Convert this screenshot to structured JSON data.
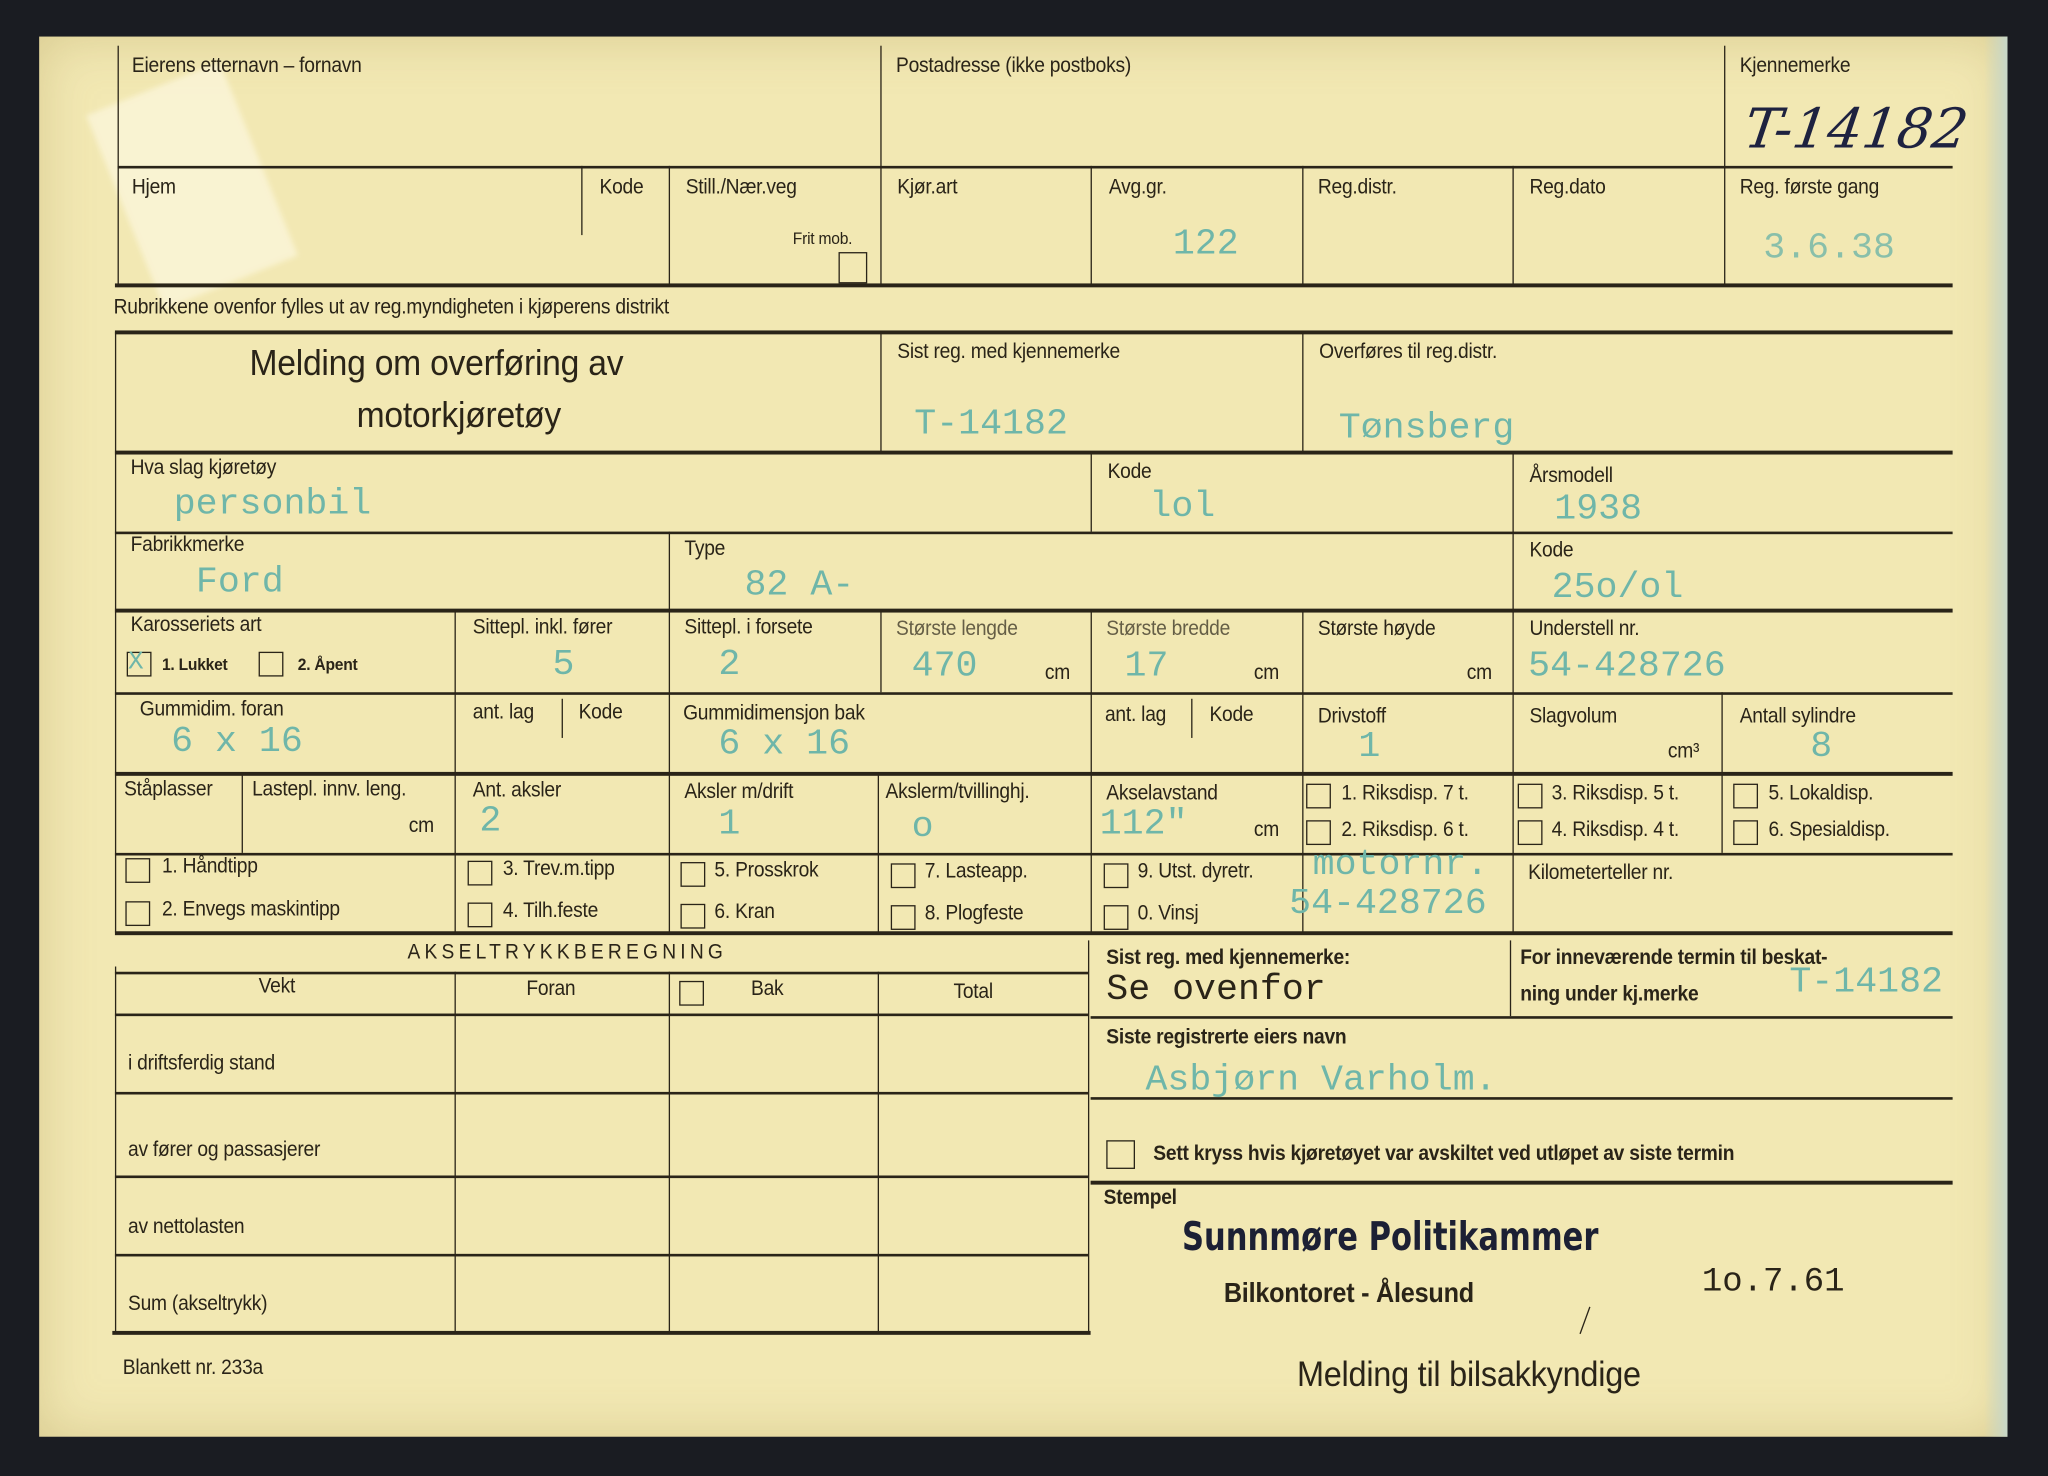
{
  "header": {
    "owner_name_label": "Eierens etternavn – fornavn",
    "postal_address_label": "Postadresse (ikke postboks)",
    "reg_mark_label": "Kjennemerke",
    "reg_mark_handwritten": "T-14182",
    "home_label": "Hjem",
    "code_label": "Kode",
    "road_label": "Still./Nær.veg",
    "frit_mob_label": "Frit mob.",
    "drive_type_label": "Kjør.art",
    "fee_group_label": "Avg.gr.",
    "fee_group_value": "122",
    "reg_district_label": "Reg.distr.",
    "reg_date_label": "Reg.dato",
    "first_reg_label": "Reg. første gang",
    "first_reg_value": "3.6.38",
    "note": "Rubrikkene ovenfor fylles ut av reg.myndigheten i kjøperens distrikt"
  },
  "title": {
    "line1": "Melding om overføring av",
    "line2": "motorkjøretøy"
  },
  "transfer": {
    "last_reg_label": "Sist reg. med kjennemerke",
    "last_reg_value": "T-14182",
    "to_district_label": "Overføres til reg.distr.",
    "to_district_value": "Tønsberg"
  },
  "vehicle": {
    "kind_label": "Hva slag kjøretøy",
    "kind_value": "personbil",
    "kind_code_label": "Kode",
    "kind_code_value": "lol",
    "model_year_label": "Årsmodell",
    "model_year_value": "1938",
    "make_label": "Fabrikkmerke",
    "make_value": "Ford",
    "type_label": "Type",
    "type_value": "82 A-",
    "type_code_label": "Kode",
    "type_code_value": "25o/ol",
    "body_label": "Karosseriets art",
    "body_opt1": "1. Lukket",
    "body_opt1_mark": "X",
    "body_opt2": "2. Åpent",
    "seats_label": "Sittepl. inkl. fører",
    "seats_value": "5",
    "front_seats_label": "Sittepl. i forsete",
    "front_seats_value": "2",
    "length_label": "Største lengde",
    "length_value": "470",
    "length_unit": "cm",
    "width_label": "Største bredde",
    "width_value": "17",
    "width_unit": "cm",
    "height_label": "Største høyde",
    "height_unit": "cm",
    "chassis_label": "Understell nr.",
    "chassis_value": "54-428726",
    "tyre_front_label": "Gummidim. foran",
    "tyre_front_value": "6 x 16",
    "ply_label": "ant. lag",
    "ply_code_label": "Kode",
    "tyre_rear_label": "Gummidimensjon bak",
    "tyre_rear_value": "6 x 16",
    "ply2_label": "ant. lag",
    "ply2_code_label": "Kode",
    "fuel_label": "Drivstoff",
    "fuel_value": "1",
    "displacement_label": "Slagvolum",
    "displacement_unit": "cm³",
    "cylinders_label": "Antall sylindre",
    "cylinders_value": "8",
    "standing_label": "Ståplasser",
    "cargo_len_label": "Lastepl. innv. leng.",
    "cargo_len_unit": "cm",
    "axles_label": "Ant. aksler",
    "axles_value": "2",
    "driven_axles_label": "Aksler m/drift",
    "driven_axles_value": "1",
    "twin_axles_label": "Akslerm/tvillinghj.",
    "twin_axles_value": "o",
    "wheelbase_label": "Akselavstand",
    "wheelbase_value": "112\"",
    "wheelbase_unit": "cm",
    "disp": [
      "1. Riksdisp. 7 t.",
      "2. Riksdisp. 6 t.",
      "3. Riksdisp. 5 t.",
      "4. Riksdisp. 4 t.",
      "5. Lokaldisp.",
      "6. Spesialdisp."
    ],
    "equip": [
      "1. Håndtipp",
      "2. Envegs maskintipp",
      "3. Trev.m.tipp",
      "4. Tilh.feste",
      "5. Prosskrok",
      "6. Kran",
      "7. Lasteapp.",
      "8. Plogfeste",
      "9. Utst. dyretr.",
      "0. Vinsj"
    ],
    "engine_label_typed": "motornr.",
    "engine_value": "54-428726",
    "odometer_label": "Kilometerteller nr."
  },
  "axle_table": {
    "title": "AKSELTRYKKBEREGNING",
    "headers": [
      "Vekt",
      "Foran",
      "Bak",
      "Total"
    ],
    "rows": [
      "i driftsferdig stand",
      "av fører og passasjerer",
      "av nettolasten",
      "Sum (akseltrykk)"
    ]
  },
  "right": {
    "last_reg_label": "Sist reg. med kjennemerke:",
    "last_reg_value": "Se ovenfor",
    "tax_label1": "For inneværende termin til beskat-",
    "tax_label2": "ning under kj.merke",
    "tax_value": "T-14182",
    "last_owner_label": "Siste registrerte eiers navn",
    "last_owner_value": "Asbjørn Varholm.",
    "deregistered_label": "Sett kryss hvis kjøretøyet var avskiltet ved utløpet av siste termin"
  },
  "footer": {
    "stamp_label": "Stempel",
    "stamp_line1": "Sunnmøre Politikammer",
    "stamp_line2": "Bilkontoret - Ålesund",
    "date": "1o.7.61",
    "recipient": "Melding til bilsakkyndige",
    "form_number": "Blankett nr. 233a"
  }
}
